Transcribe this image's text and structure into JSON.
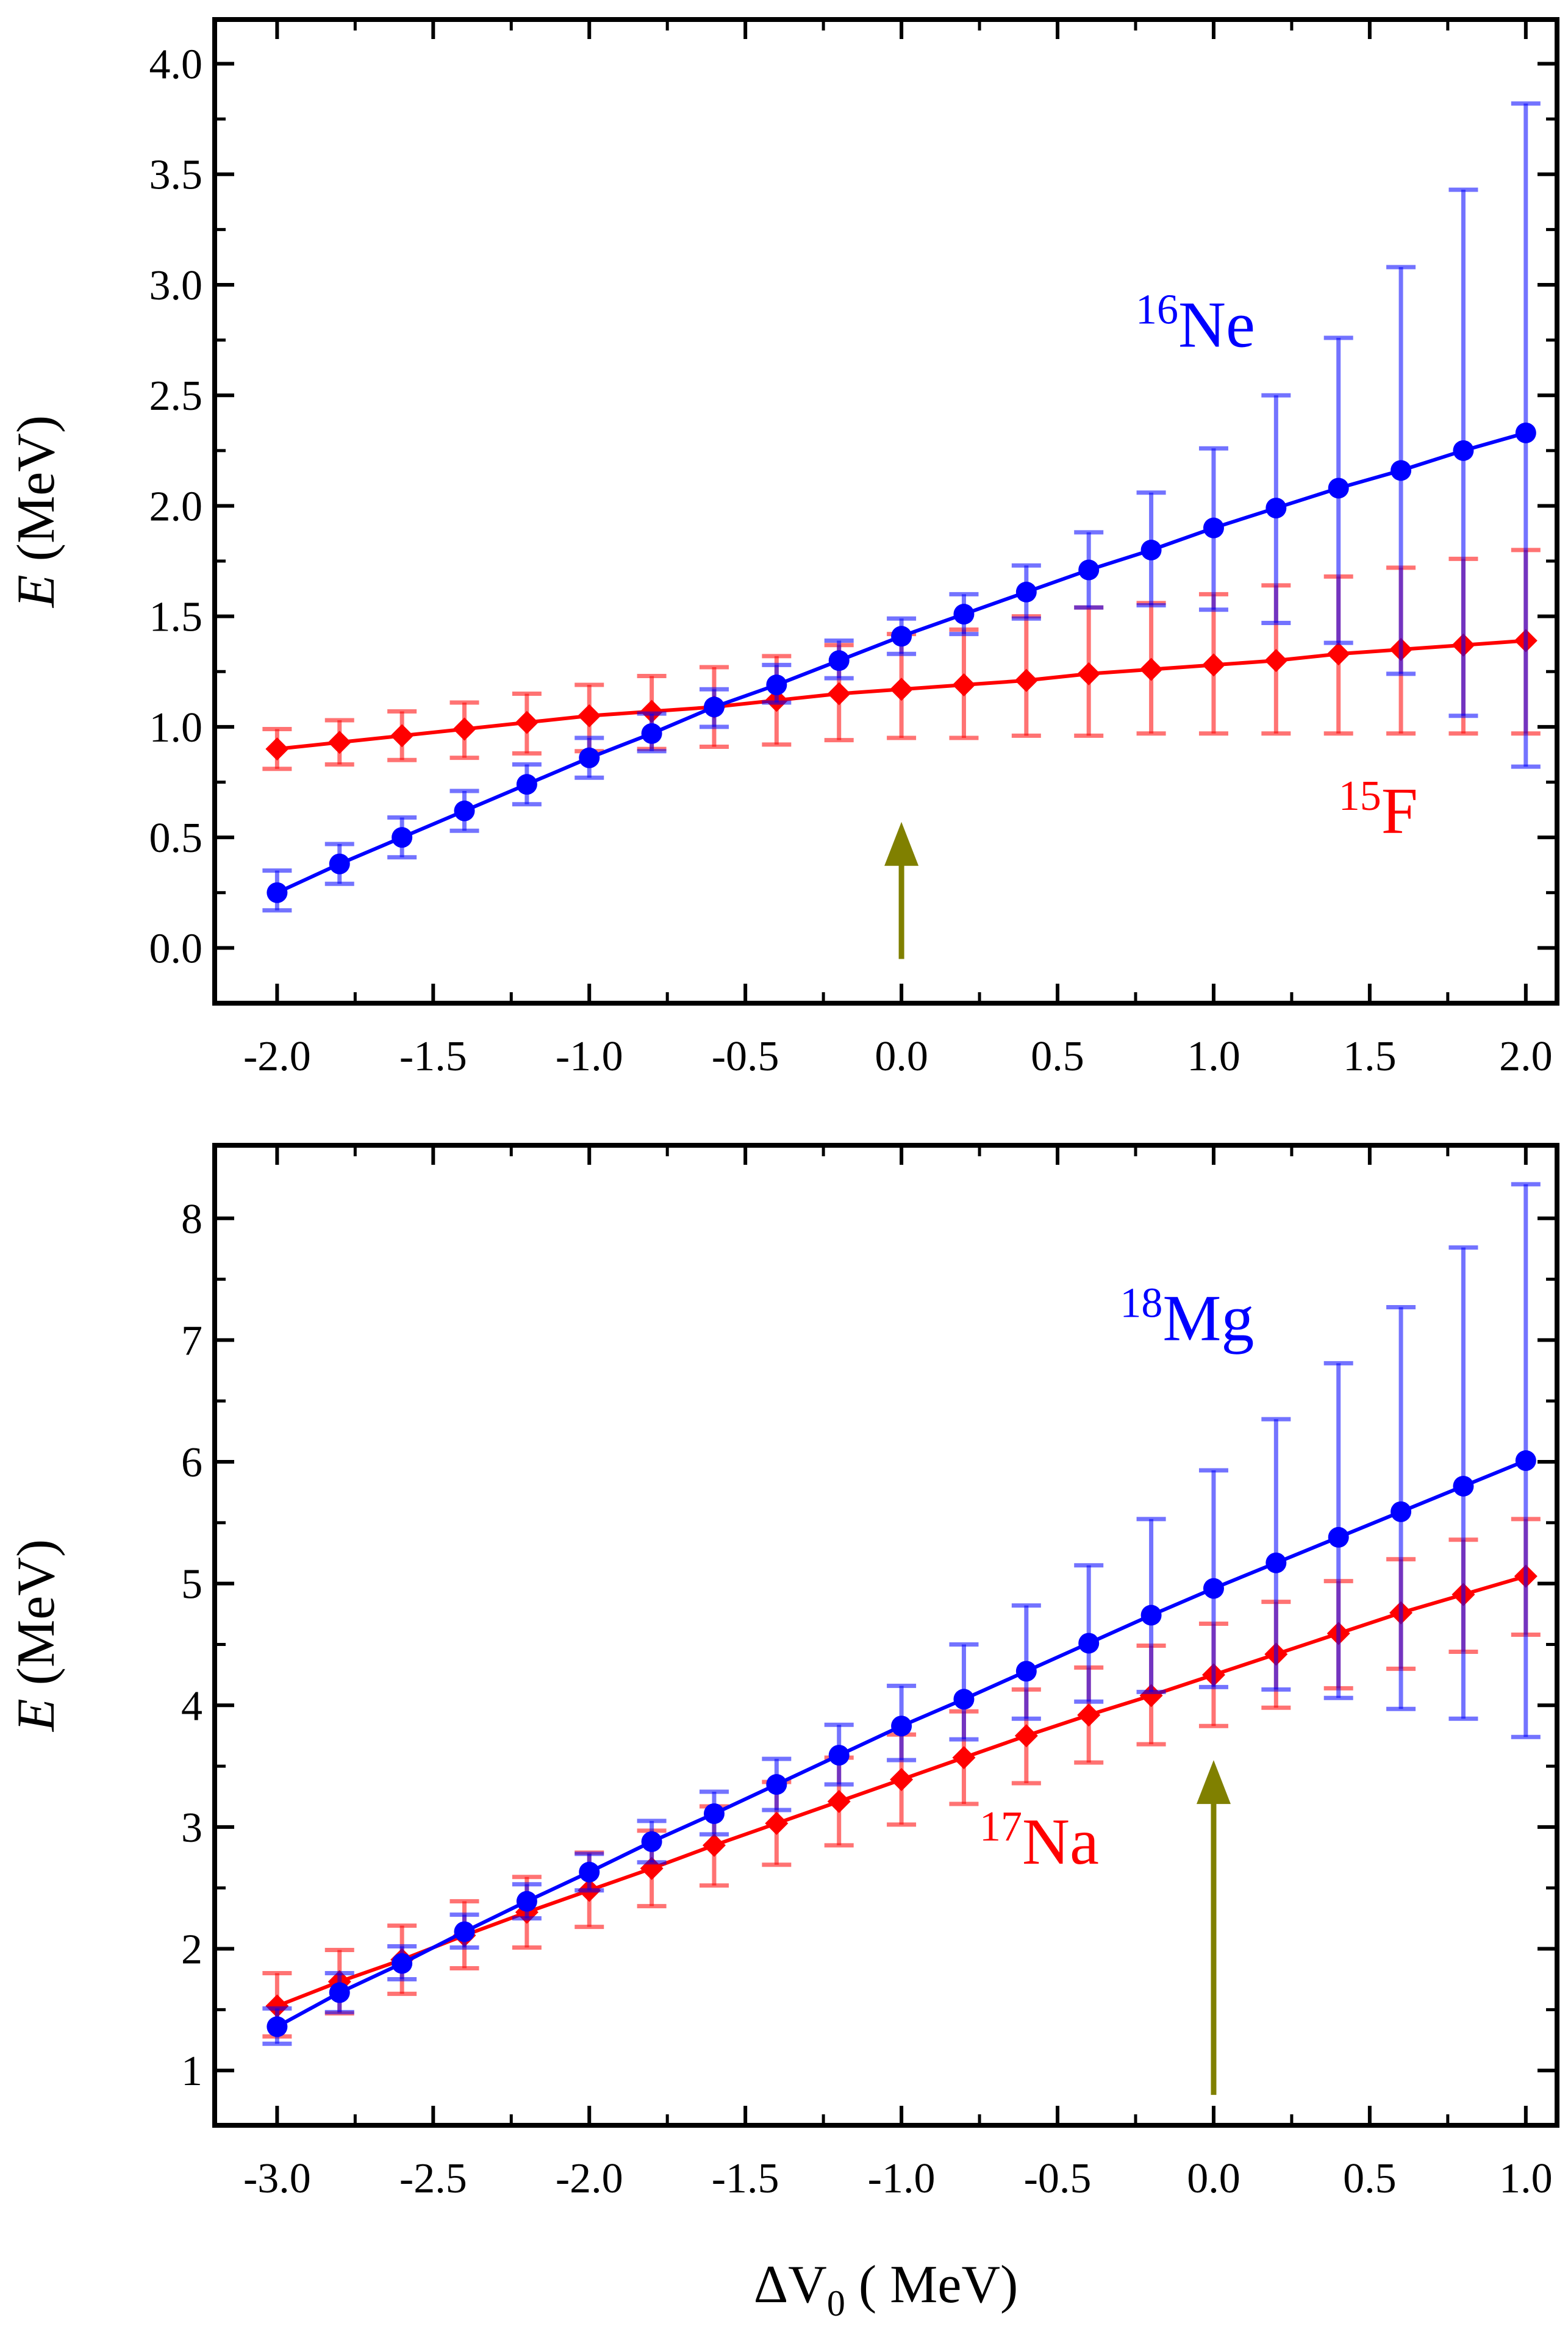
{
  "chart_data": [
    {
      "type": "line",
      "xlabel": "",
      "ylabel_italic": "E",
      "ylabel_unit": " (MeV)",
      "xlim": [
        -2.2,
        2.1
      ],
      "ylim": [
        -0.25,
        4.2
      ],
      "xticks": [
        -2.0,
        -1.5,
        -1.0,
        -0.5,
        0.0,
        0.5,
        1.0,
        1.5,
        2.0
      ],
      "xtick_labels": [
        "-2.0",
        "-1.5",
        "-1.0",
        "-0.5",
        "0.0",
        "0.5",
        "1.0",
        "1.5",
        "2.0"
      ],
      "yticks": [
        0.0,
        0.5,
        1.0,
        1.5,
        2.0,
        2.5,
        3.0,
        3.5,
        4.0
      ],
      "ytick_labels": [
        "0.0",
        "0.5",
        "1.0",
        "1.5",
        "2.0",
        "2.5",
        "3.0",
        "3.5",
        "4.0"
      ],
      "arrow": {
        "x": 0.0,
        "y_from": -0.05,
        "y_to": 0.57,
        "color": "#808000"
      },
      "x": [
        -2.0,
        -1.8,
        -1.6,
        -1.4,
        -1.2,
        -1.0,
        -0.8,
        -0.6,
        -0.4,
        -0.2,
        0.0,
        0.2,
        0.4,
        0.6,
        0.8,
        1.0,
        1.2,
        1.4,
        1.6,
        1.8,
        2.0
      ],
      "series": [
        {
          "name": "15F",
          "label_mass": "15",
          "label_elem": "F",
          "label_pos": [
            1.4,
            0.52
          ],
          "color": "#ff0000",
          "marker": "diamond",
          "values": [
            0.9,
            0.93,
            0.96,
            0.99,
            1.02,
            1.05,
            1.07,
            1.09,
            1.12,
            1.15,
            1.17,
            1.19,
            1.21,
            1.24,
            1.26,
            1.28,
            1.3,
            1.33,
            1.35,
            1.37,
            1.39
          ],
          "err_low": [
            0.81,
            0.83,
            0.85,
            0.86,
            0.88,
            0.89,
            0.9,
            0.91,
            0.92,
            0.94,
            0.95,
            0.95,
            0.96,
            0.96,
            0.97,
            0.97,
            0.97,
            0.97,
            0.97,
            0.97,
            0.97
          ],
          "err_high": [
            0.99,
            1.03,
            1.07,
            1.11,
            1.15,
            1.19,
            1.23,
            1.27,
            1.32,
            1.37,
            1.42,
            1.44,
            1.5,
            1.54,
            1.56,
            1.6,
            1.64,
            1.68,
            1.72,
            1.76,
            1.8
          ]
        },
        {
          "name": "16Ne",
          "label_mass": "16",
          "label_elem": "Ne",
          "label_pos": [
            0.75,
            2.72
          ],
          "color": "#0000ff",
          "marker": "circle",
          "values": [
            0.25,
            0.38,
            0.5,
            0.62,
            0.74,
            0.86,
            0.97,
            1.09,
            1.19,
            1.3,
            1.41,
            1.51,
            1.61,
            1.71,
            1.8,
            1.9,
            1.99,
            2.08,
            2.16,
            2.25,
            2.33
          ],
          "err_low": [
            0.17,
            0.29,
            0.41,
            0.53,
            0.65,
            0.77,
            0.89,
            1.0,
            1.11,
            1.22,
            1.33,
            1.42,
            1.49,
            1.54,
            1.55,
            1.53,
            1.47,
            1.38,
            1.24,
            1.05,
            0.82
          ],
          "err_high": [
            0.35,
            0.47,
            0.59,
            0.71,
            0.83,
            0.95,
            1.06,
            1.17,
            1.28,
            1.39,
            1.49,
            1.6,
            1.73,
            1.88,
            2.06,
            2.26,
            2.5,
            2.76,
            3.08,
            3.43,
            3.82
          ]
        }
      ]
    },
    {
      "type": "line",
      "xlabel_main": "ΔV",
      "xlabel_sub": "0",
      "xlabel_unit": " ( MeV)",
      "ylabel_italic": "E",
      "ylabel_unit": " (MeV)",
      "xlim": [
        -3.2,
        1.1
      ],
      "ylim": [
        0.55,
        8.6
      ],
      "xticks": [
        -3.0,
        -2.5,
        -2.0,
        -1.5,
        -1.0,
        -0.5,
        0.0,
        0.5,
        1.0
      ],
      "xtick_labels": [
        "-3.0",
        "-2.5",
        "-2.0",
        "-1.5",
        "-1.0",
        "-0.5",
        "0.0",
        "0.5",
        "1.0"
      ],
      "yticks": [
        1,
        2,
        3,
        4,
        5,
        6,
        7,
        8
      ],
      "ytick_labels": [
        "1",
        "2",
        "3",
        "4",
        "5",
        "6",
        "7",
        "8"
      ],
      "arrow": {
        "x": 0.0,
        "y_from": 0.8,
        "y_to": 3.55,
        "color": "#808000"
      },
      "x": [
        -3.0,
        -2.8,
        -2.6,
        -2.4,
        -2.2,
        -2.0,
        -1.8,
        -1.6,
        -1.4,
        -1.2,
        -1.0,
        -0.8,
        -0.6,
        -0.4,
        -0.2,
        0.0,
        0.2,
        0.4,
        0.6,
        0.8,
        1.0
      ],
      "series": [
        {
          "name": "17Na",
          "label_mass": "17",
          "label_elem": "Na",
          "label_pos": [
            -0.75,
            2.7
          ],
          "color": "#ff0000",
          "marker": "diamond",
          "values": [
            1.53,
            1.73,
            1.91,
            2.11,
            2.3,
            2.48,
            2.66,
            2.85,
            3.03,
            3.21,
            3.39,
            3.57,
            3.75,
            3.92,
            4.08,
            4.25,
            4.42,
            4.59,
            4.76,
            4.91,
            5.06
          ],
          "err_low": [
            1.28,
            1.47,
            1.63,
            1.84,
            2.01,
            2.18,
            2.35,
            2.52,
            2.69,
            2.85,
            3.02,
            3.19,
            3.36,
            3.53,
            3.68,
            3.83,
            3.98,
            4.14,
            4.3,
            4.44,
            4.58
          ],
          "err_high": [
            1.8,
            1.99,
            2.19,
            2.39,
            2.59,
            2.79,
            2.97,
            3.17,
            3.37,
            3.57,
            3.76,
            3.95,
            4.13,
            4.31,
            4.49,
            4.67,
            4.85,
            5.02,
            5.2,
            5.36,
            5.53
          ]
        },
        {
          "name": "18Mg",
          "label_mass": "18",
          "label_elem": "Mg",
          "label_pos": [
            -0.3,
            7.0
          ],
          "color": "#0000ff",
          "marker": "circle",
          "values": [
            1.36,
            1.64,
            1.88,
            2.14,
            2.39,
            2.63,
            2.88,
            3.11,
            3.35,
            3.59,
            3.83,
            4.05,
            4.28,
            4.51,
            4.74,
            4.96,
            5.17,
            5.38,
            5.59,
            5.8,
            6.01
          ],
          "err_low": [
            1.22,
            1.48,
            1.75,
            2.01,
            2.25,
            2.48,
            2.71,
            2.94,
            3.14,
            3.35,
            3.55,
            3.72,
            3.89,
            4.03,
            4.11,
            4.15,
            4.13,
            4.06,
            3.97,
            3.89,
            3.74
          ],
          "err_high": [
            1.51,
            1.8,
            2.02,
            2.28,
            2.53,
            2.78,
            3.05,
            3.29,
            3.56,
            3.84,
            4.16,
            4.5,
            4.82,
            5.15,
            5.53,
            5.93,
            6.35,
            6.81,
            7.27,
            7.76,
            8.28
          ]
        }
      ]
    }
  ]
}
